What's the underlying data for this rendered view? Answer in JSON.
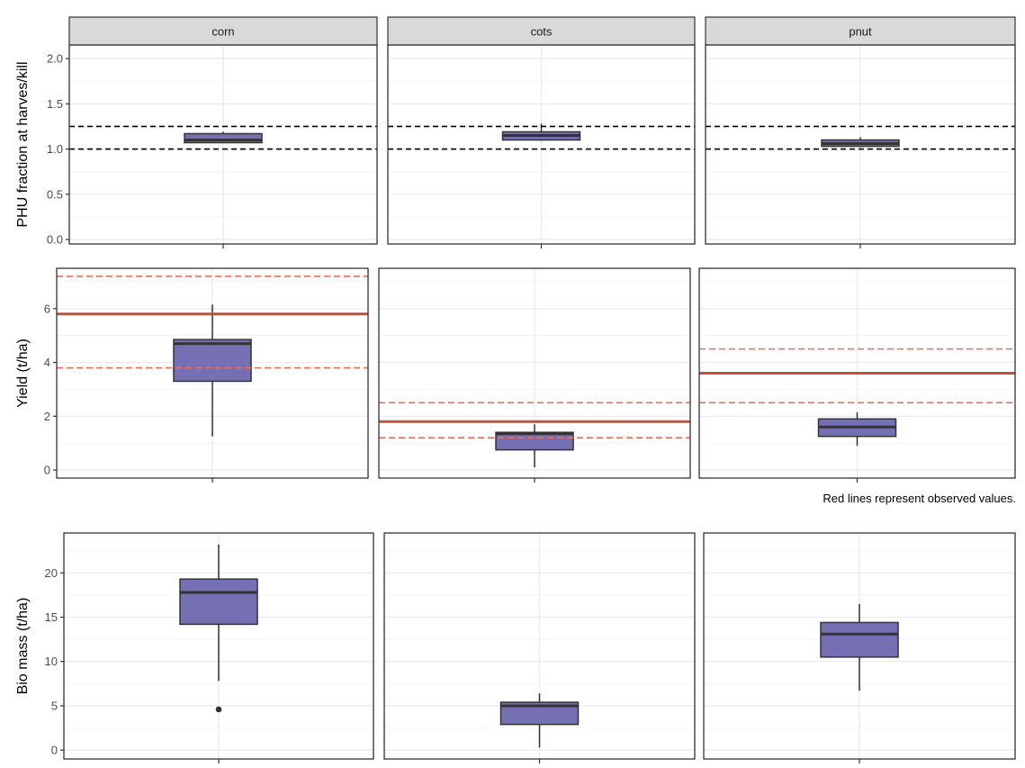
{
  "colors": {
    "box_fill": "#7570b3",
    "box_stroke": "#333333",
    "observed_line": "#c4523a",
    "observed_dash": "#f26c50",
    "reference_dash": "#000000",
    "grid_major": "#ebebeb",
    "grid_minor": "#f5f5f5",
    "strip_fill": "#d9d9d9",
    "panel_border": "#333333"
  },
  "note": "Red lines represent observed values.",
  "chart_data": [
    {
      "type": "box",
      "ylabel": "PHU fraction at harves/kill",
      "ylim": [
        -0.05,
        2.15
      ],
      "yticks": [
        0.0,
        0.5,
        1.0,
        1.5,
        2.0
      ],
      "ytick_labels": [
        "0.0",
        "0.5",
        "1.0",
        "1.5",
        "2.0"
      ],
      "facets": [
        "corn",
        "cots",
        "pnut"
      ],
      "strip_labels": true,
      "grid": true,
      "reference_lines": [
        1.0,
        1.25
      ],
      "boxes": [
        {
          "facet": "corn",
          "min": 1.07,
          "q1": 1.07,
          "median": 1.1,
          "q3": 1.17,
          "max": 1.19
        },
        {
          "facet": "cots",
          "min": 1.09,
          "q1": 1.1,
          "median": 1.15,
          "q3": 1.19,
          "max": 1.28
        },
        {
          "facet": "pnut",
          "min": 1.02,
          "q1": 1.03,
          "median": 1.06,
          "q3": 1.1,
          "max": 1.13
        }
      ]
    },
    {
      "type": "box",
      "ylabel": "Yield (t/ha)",
      "ylim": [
        -0.3,
        7.5
      ],
      "yticks": [
        0,
        2,
        4,
        6
      ],
      "ytick_labels": [
        "0",
        "2",
        "4",
        "6"
      ],
      "facets": [
        "corn",
        "cots",
        "pnut"
      ],
      "strip_labels": false,
      "grid": true,
      "boxes": [
        {
          "facet": "corn",
          "min": 1.25,
          "q1": 3.3,
          "median": 4.7,
          "q3": 4.85,
          "max": 6.15
        },
        {
          "facet": "cots",
          "min": 0.1,
          "q1": 0.75,
          "median": 1.35,
          "q3": 1.4,
          "max": 1.7
        },
        {
          "facet": "pnut",
          "min": 0.9,
          "q1": 1.25,
          "median": 1.6,
          "q3": 1.9,
          "max": 2.15
        }
      ],
      "observed": [
        {
          "facet": "corn",
          "value": 5.8,
          "low": 3.8,
          "high": 7.2
        },
        {
          "facet": "cots",
          "value": 1.8,
          "low": 1.2,
          "high": 2.5
        },
        {
          "facet": "pnut",
          "value": 3.6,
          "low": 2.5,
          "high": 4.5
        }
      ]
    },
    {
      "type": "box",
      "ylabel": "Bio mass (t/ha)",
      "ylim": [
        -1.0,
        24.5
      ],
      "yticks": [
        0,
        5,
        10,
        15,
        20
      ],
      "ytick_labels": [
        "0",
        "5",
        "10",
        "15",
        "20"
      ],
      "facets": [
        "corn",
        "cots",
        "pnut"
      ],
      "strip_labels": false,
      "grid": true,
      "boxes": [
        {
          "facet": "corn",
          "min": 7.8,
          "q1": 14.2,
          "median": 17.8,
          "q3": 19.3,
          "max": 23.2,
          "outliers": [
            4.6
          ]
        },
        {
          "facet": "cots",
          "min": 0.3,
          "q1": 2.9,
          "median": 5.0,
          "q3": 5.4,
          "max": 6.4
        },
        {
          "facet": "pnut",
          "min": 6.7,
          "q1": 10.5,
          "median": 13.1,
          "q3": 14.4,
          "max": 16.5
        }
      ]
    }
  ]
}
